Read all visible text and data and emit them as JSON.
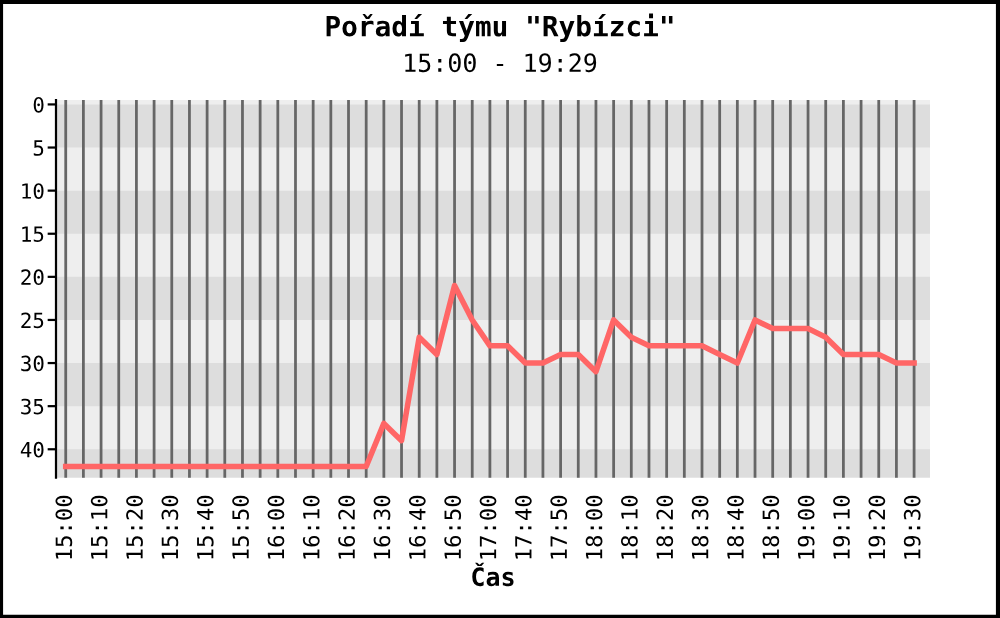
{
  "chart_data": {
    "type": "line",
    "title": "Pořadí týmu \"Rybízci\"",
    "subtitle": "15:00 - 19:29",
    "xlabel": "Čas",
    "categories": [
      "15:00",
      null,
      "15:10",
      null,
      "15:20",
      null,
      "15:30",
      null,
      "15:40",
      null,
      "15:50",
      null,
      "16:00",
      null,
      "16:10",
      null,
      "16:20",
      null,
      "16:30",
      null,
      "16:40",
      null,
      "16:50",
      null,
      "17:00",
      null,
      "17:40",
      null,
      "17:50",
      null,
      "18:00",
      null,
      "18:10",
      null,
      "18:20",
      null,
      "18:30",
      null,
      "18:40",
      null,
      "18:50",
      null,
      "19:00",
      null,
      "19:10",
      null,
      "19:20",
      null,
      "19:30"
    ],
    "series": [
      {
        "color": "#ff6666",
        "values": [
          42,
          42,
          42,
          42,
          42,
          42,
          42,
          42,
          42,
          42,
          42,
          42,
          42,
          42,
          42,
          42,
          42,
          42,
          37,
          39,
          27,
          29,
          21,
          25,
          28,
          28,
          30,
          30,
          29,
          29,
          31,
          25,
          27,
          28,
          28,
          28,
          28,
          29,
          30,
          25,
          26,
          26,
          26,
          27,
          29,
          29,
          29,
          30,
          30
        ]
      }
    ],
    "ylim": [
      43.3,
      -0.5
    ],
    "yticks": [
      0,
      5,
      10,
      15,
      20,
      25,
      30,
      35,
      40
    ],
    "grid": true,
    "marker": "none",
    "line_style": "solid"
  }
}
